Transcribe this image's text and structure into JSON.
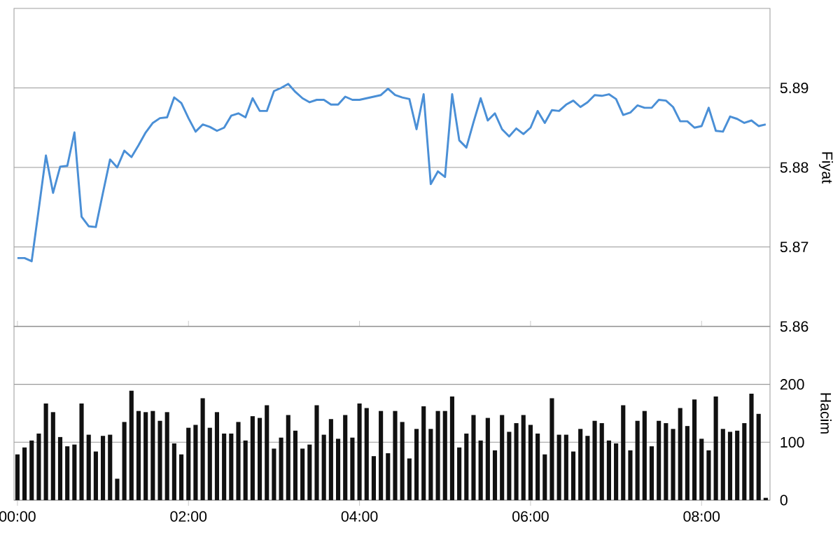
{
  "chart_data": [
    {
      "type": "line",
      "ylabel": "Fiyat",
      "color": "#4a8fd6",
      "grid": "y",
      "tick_labels": "y",
      "xlim": [
        -0.04,
        8.8
      ],
      "xticks": [
        {
          "value": 0,
          "label": null
        },
        {
          "value": 2,
          "label": null
        },
        {
          "value": 4,
          "label": null
        },
        {
          "value": 6,
          "label": null
        },
        {
          "value": 8,
          "label": null
        }
      ],
      "ylim": [
        5.86,
        5.9
      ],
      "yticks": [
        5.86,
        5.87,
        5.88,
        5.89
      ],
      "x": [
        0,
        0.0833,
        0.1667,
        0.25,
        0.3333,
        0.4167,
        0.5,
        0.5833,
        0.6667,
        0.75,
        0.8333,
        0.9167,
        1,
        1.0833,
        1.1667,
        1.25,
        1.3333,
        1.4167,
        1.5,
        1.5833,
        1.6667,
        1.75,
        1.8333,
        1.9167,
        2,
        2.0833,
        2.1667,
        2.25,
        2.3333,
        2.4167,
        2.5,
        2.5833,
        2.6667,
        2.75,
        2.8333,
        2.9167,
        3,
        3.0833,
        3.1667,
        3.25,
        3.3333,
        3.4167,
        3.5,
        3.5833,
        3.6667,
        3.75,
        3.8333,
        3.9167,
        4,
        4.0833,
        4.1667,
        4.25,
        4.3333,
        4.4167,
        4.5,
        4.5833,
        4.6667,
        4.75,
        4.8333,
        4.9167,
        5,
        5.0833,
        5.1667,
        5.25,
        5.3333,
        5.4167,
        5.5,
        5.5833,
        5.6667,
        5.75,
        5.8333,
        5.9167,
        6,
        6.0833,
        6.1667,
        6.25,
        6.3333,
        6.4167,
        6.5,
        6.5833,
        6.6667,
        6.75,
        6.8333,
        6.9167,
        7,
        7.0833,
        7.1667,
        7.25,
        7.3333,
        7.4167,
        7.5,
        7.5833,
        7.6667,
        7.75,
        7.8333,
        7.9167,
        8,
        8.0833,
        8.1667,
        8.25,
        8.3333,
        8.4167,
        8.5,
        8.5833,
        8.6667,
        8.75
      ],
      "values": [
        5.8686,
        5.8686,
        5.8682,
        5.8748,
        5.8815,
        5.8768,
        5.8801,
        5.8802,
        5.8844,
        5.8738,
        5.8726,
        5.8725,
        5.8768,
        5.881,
        5.88,
        5.8821,
        5.8813,
        5.8828,
        5.8844,
        5.8856,
        5.8862,
        5.8863,
        5.8888,
        5.8881,
        5.8862,
        5.8845,
        5.8854,
        5.8851,
        5.8846,
        5.885,
        5.8865,
        5.8868,
        5.8863,
        5.8887,
        5.8871,
        5.8871,
        5.8896,
        5.89,
        5.8905,
        5.8895,
        5.8887,
        5.8882,
        5.8885,
        5.8885,
        5.8879,
        5.8879,
        5.8889,
        5.8885,
        5.8885,
        5.8887,
        5.8889,
        5.8891,
        5.8899,
        5.8891,
        5.8888,
        5.8886,
        5.8848,
        5.8892,
        5.8779,
        5.8795,
        5.8788,
        5.8892,
        5.8834,
        5.8825,
        5.8857,
        5.8887,
        5.8859,
        5.8868,
        5.8848,
        5.8839,
        5.8849,
        5.8842,
        5.885,
        5.8871,
        5.8856,
        5.8872,
        5.8871,
        5.8879,
        5.8884,
        5.8876,
        5.8882,
        5.8891,
        5.889,
        5.8892,
        5.8886,
        5.8866,
        5.8869,
        5.8878,
        5.8875,
        5.8875,
        5.8885,
        5.8884,
        5.8876,
        5.8858,
        5.8858,
        5.885,
        5.8852,
        5.8875,
        5.8846,
        5.8845,
        5.8864,
        5.8861,
        5.8856,
        5.8859,
        5.8852,
        5.8854
      ]
    },
    {
      "type": "bar",
      "ylabel": "Hacim",
      "color": "#111111",
      "grid": "y",
      "xlim": [
        -0.04,
        8.8
      ],
      "xticks": [
        {
          "value": 0,
          "label": "00:00"
        },
        {
          "value": 2,
          "label": "02:00"
        },
        {
          "value": 4,
          "label": "04:00"
        },
        {
          "value": 6,
          "label": "06:00"
        },
        {
          "value": 8,
          "label": "08:00"
        }
      ],
      "ylim": [
        0,
        300
      ],
      "yticks": [
        0,
        100,
        200
      ],
      "x": [
        0,
        0.0833,
        0.1667,
        0.25,
        0.3333,
        0.4167,
        0.5,
        0.5833,
        0.6667,
        0.75,
        0.8333,
        0.9167,
        1,
        1.0833,
        1.1667,
        1.25,
        1.3333,
        1.4167,
        1.5,
        1.5833,
        1.6667,
        1.75,
        1.8333,
        1.9167,
        2,
        2.0833,
        2.1667,
        2.25,
        2.3333,
        2.4167,
        2.5,
        2.5833,
        2.6667,
        2.75,
        2.8333,
        2.9167,
        3,
        3.0833,
        3.1667,
        3.25,
        3.3333,
        3.4167,
        3.5,
        3.5833,
        3.6667,
        3.75,
        3.8333,
        3.9167,
        4,
        4.0833,
        4.1667,
        4.25,
        4.3333,
        4.4167,
        4.5,
        4.5833,
        4.6667,
        4.75,
        4.8333,
        4.9167,
        5,
        5.0833,
        5.1667,
        5.25,
        5.3333,
        5.4167,
        5.5,
        5.5833,
        5.6667,
        5.75,
        5.8333,
        5.9167,
        6,
        6.0833,
        6.1667,
        6.25,
        6.3333,
        6.4167,
        6.5,
        6.5833,
        6.6667,
        6.75,
        6.8333,
        6.9167,
        7,
        7.0833,
        7.1667,
        7.25,
        7.3333,
        7.4167,
        7.5,
        7.5833,
        7.6667,
        7.75,
        7.8333,
        7.9167,
        8,
        8.0833,
        8.1667,
        8.25,
        8.3333,
        8.4167,
        8.5,
        8.5833,
        8.6667,
        8.75
      ],
      "values": [
        79,
        91,
        103,
        115,
        167,
        152,
        109,
        93,
        96,
        167,
        113,
        84,
        111,
        113,
        37,
        135,
        189,
        154,
        152,
        154,
        137,
        152,
        98,
        79,
        125,
        130,
        176,
        125,
        152,
        115,
        115,
        135,
        103,
        145,
        142,
        164,
        89,
        108,
        147,
        120,
        89,
        96,
        164,
        113,
        140,
        106,
        147,
        108,
        167,
        159,
        76,
        154,
        81,
        154,
        135,
        72,
        123,
        162,
        123,
        154,
        154,
        179,
        91,
        115,
        147,
        103,
        142,
        86,
        147,
        118,
        133,
        147,
        130,
        115,
        79,
        176,
        113,
        113,
        84,
        123,
        111,
        137,
        133,
        103,
        98,
        164,
        86,
        137,
        154,
        93,
        137,
        133,
        123,
        159,
        128,
        174,
        106,
        86,
        179,
        123,
        118,
        120,
        133,
        184,
        149,
        4
      ]
    }
  ]
}
